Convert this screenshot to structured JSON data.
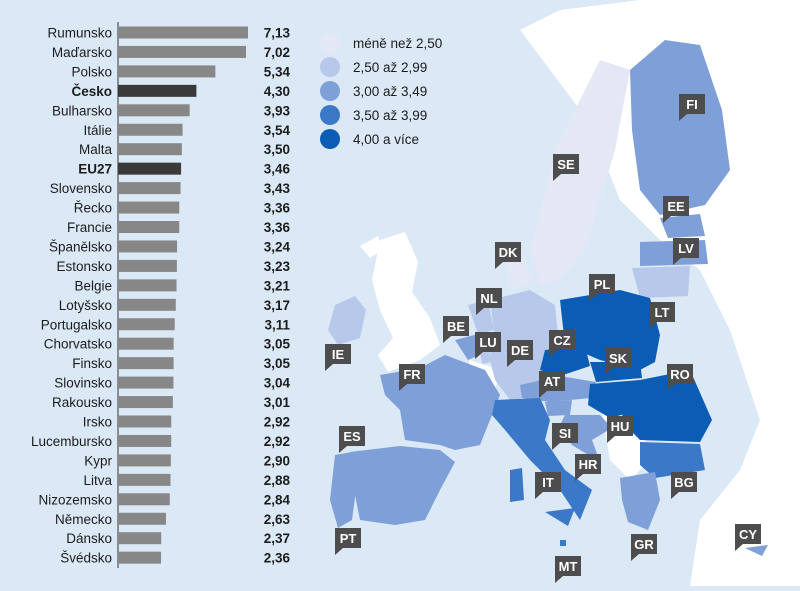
{
  "chart_data": {
    "type": "bar",
    "orientation": "horizontal",
    "categories": [
      "Rumunsko",
      "Maďarsko",
      "Polsko",
      "Česko",
      "Bulharsko",
      "Itálie",
      "Malta",
      "EU27",
      "Slovensko",
      "Řecko",
      "Francie",
      "Španělsko",
      "Estonsko",
      "Belgie",
      "Lotyšsko",
      "Portugalsko",
      "Chorvatsko",
      "Finsko",
      "Slovinsko",
      "Rakousko",
      "Irsko",
      "Lucembursko",
      "Kypr",
      "Litva",
      "Nizozemsko",
      "Německo",
      "Dánsko",
      "Švédsko"
    ],
    "values": [
      7.13,
      7.02,
      5.34,
      4.3,
      3.93,
      3.54,
      3.5,
      3.46,
      3.43,
      3.36,
      3.36,
      3.24,
      3.23,
      3.21,
      3.17,
      3.11,
      3.05,
      3.05,
      3.04,
      3.01,
      2.92,
      2.92,
      2.9,
      2.88,
      2.84,
      2.63,
      2.37,
      2.36
    ],
    "value_labels": [
      "7,13",
      "7,02",
      "5,34",
      "4,30",
      "3,93",
      "3,54",
      "3,50",
      "3,46",
      "3,43",
      "3,36",
      "3,36",
      "3,24",
      "3,23",
      "3,21",
      "3,17",
      "3,11",
      "3,05",
      "3,05",
      "3,04",
      "3,01",
      "2,92",
      "2,92",
      "2,90",
      "2,88",
      "2,84",
      "2,63",
      "2,37",
      "2,36"
    ],
    "highlight": [
      "Česko",
      "EU27"
    ],
    "xlim": [
      0,
      7.13
    ],
    "grid": false,
    "legend_position": "top",
    "colors": {
      "bar": "#878787",
      "bar_highlight": "#3a3a3a",
      "background": "#dbe9f6"
    }
  },
  "map": {
    "legend": [
      {
        "label": "méně než 2,50",
        "color": "#e4e8f5"
      },
      {
        "label": "2,50  až 2,99",
        "color": "#b8c8ea"
      },
      {
        "label": "3,00 až 3,49",
        "color": "#7f9fd8"
      },
      {
        "label": "3,50 až 3,99",
        "color": "#3b78c8"
      },
      {
        "label": "4,00 a více",
        "color": "#0a5cb5"
      }
    ],
    "codes": [
      "FI",
      "SE",
      "EE",
      "LV",
      "DK",
      "LT",
      "PL",
      "NL",
      "IE",
      "BE",
      "LU",
      "DE",
      "CZ",
      "SK",
      "FR",
      "AT",
      "RO",
      "HU",
      "ES",
      "SI",
      "HR",
      "IT",
      "BG",
      "PT",
      "GR",
      "MT",
      "CY"
    ],
    "colors": {
      "sea": "#dbe9f6",
      "non_eu_land": "#ffffff",
      "label_box": "#4d4d4d"
    }
  }
}
